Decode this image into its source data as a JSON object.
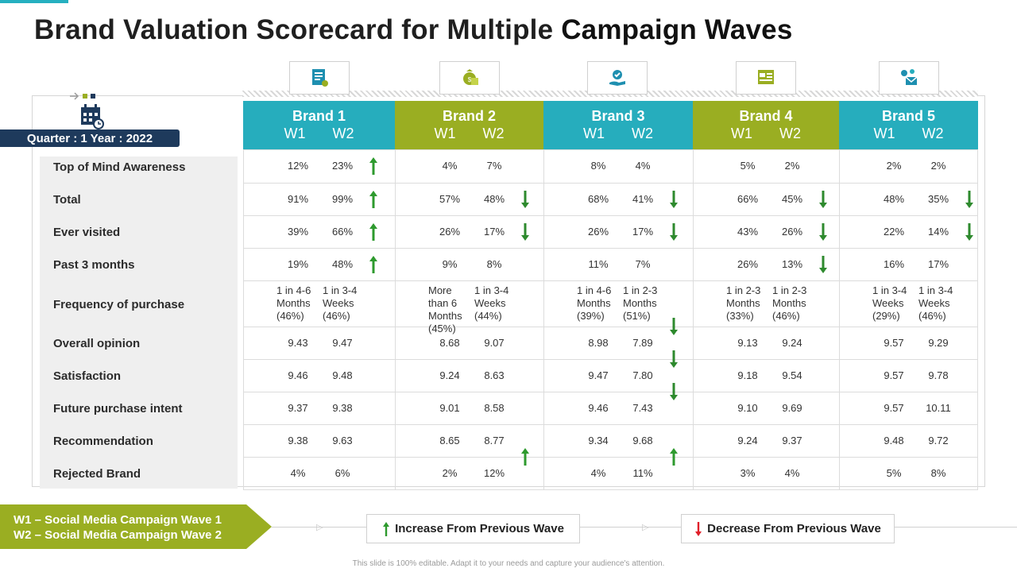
{
  "title": {
    "part1": "Brand Valuation Scorecard for Multiple ",
    "part2": "Campaign Waves"
  },
  "quarter_label": "Quarter : 1 Year : 2022",
  "row_labels": [
    "Top of Mind Awareness",
    "Total",
    "Ever visited",
    "Past 3 months",
    "Frequency of purchase",
    "Overall opinion",
    "Satisfaction",
    "Future purchase intent",
    "Recommendation",
    "Rejected Brand"
  ],
  "brands": [
    {
      "name": "Brand 1",
      "w1": "W1",
      "w2": "W2",
      "color": "#26adbd",
      "icon": "certificate-icon",
      "rows": [
        [
          "12%",
          "23%",
          "up"
        ],
        [
          "91%",
          "99%",
          "up"
        ],
        [
          "39%",
          "66%",
          "up"
        ],
        [
          "19%",
          "48%",
          "up"
        ],
        [
          "1 in 4-6 Months (46%)",
          "1 in 3-4 Weeks (46%)",
          ""
        ],
        [
          "9.43",
          "9.47",
          ""
        ],
        [
          "9.46",
          "9.48",
          ""
        ],
        [
          "9.37",
          "9.38",
          ""
        ],
        [
          "9.38",
          "9.63",
          ""
        ],
        [
          "4%",
          "6%",
          ""
        ]
      ]
    },
    {
      "name": "Brand 2",
      "w1": "W1",
      "w2": "W2",
      "color": "#9aae22",
      "icon": "money-bag-icon",
      "rows": [
        [
          "4%",
          "7%",
          ""
        ],
        [
          "57%",
          "48%",
          "down"
        ],
        [
          "26%",
          "17%",
          "down"
        ],
        [
          "9%",
          "8%",
          ""
        ],
        [
          "More than 6 Months (45%)",
          "1 in 3-4 Weeks (44%)",
          ""
        ],
        [
          "8.68",
          "9.07",
          ""
        ],
        [
          "9.24",
          "8.63",
          ""
        ],
        [
          "9.01",
          "8.58",
          ""
        ],
        [
          "8.65",
          "8.77",
          ""
        ],
        [
          "2%",
          "12%",
          "up-mid"
        ]
      ]
    },
    {
      "name": "Brand 3",
      "w1": "W1",
      "w2": "W2",
      "color": "#26adbd",
      "icon": "hand-check-icon",
      "rows": [
        [
          "8%",
          "4%",
          ""
        ],
        [
          "68%",
          "41%",
          "down"
        ],
        [
          "26%",
          "17%",
          "down"
        ],
        [
          "11%",
          "7%",
          ""
        ],
        [
          "1 in 4-6 Months (39%)",
          "1 in 2-3 Months (51%)",
          ""
        ],
        [
          "8.98",
          "7.89",
          "down-mid"
        ],
        [
          "9.47",
          "7.80",
          "down-mid"
        ],
        [
          "9.46",
          "7.43",
          "down-mid"
        ],
        [
          "9.34",
          "9.68",
          ""
        ],
        [
          "4%",
          "11%",
          "up-mid"
        ]
      ]
    },
    {
      "name": "Brand 4",
      "w1": "W1",
      "w2": "W2",
      "color": "#9aae22",
      "icon": "browser-window-icon",
      "rows": [
        [
          "5%",
          "2%",
          ""
        ],
        [
          "66%",
          "45%",
          "down"
        ],
        [
          "43%",
          "26%",
          "down"
        ],
        [
          "26%",
          "13%",
          "down"
        ],
        [
          "1 in 2-3 Months (33%)",
          "1 in 2-3 Months (46%)",
          ""
        ],
        [
          "9.13",
          "9.24",
          ""
        ],
        [
          "9.18",
          "9.54",
          ""
        ],
        [
          "9.10",
          "9.69",
          ""
        ],
        [
          "9.24",
          "9.37",
          ""
        ],
        [
          "3%",
          "4%",
          ""
        ]
      ]
    },
    {
      "name": "Brand 5",
      "w1": "W1",
      "w2": "W2",
      "color": "#26adbd",
      "icon": "email-network-icon",
      "rows": [
        [
          "2%",
          "2%",
          ""
        ],
        [
          "48%",
          "35%",
          "down"
        ],
        [
          "22%",
          "14%",
          "down"
        ],
        [
          "16%",
          "17%",
          ""
        ],
        [
          "1 in 3-4 Weeks (29%)",
          "1 in 3-4 Weeks (46%)",
          ""
        ],
        [
          "9.57",
          "9.29",
          ""
        ],
        [
          "9.57",
          "9.78",
          ""
        ],
        [
          "9.57",
          "10.11",
          ""
        ],
        [
          "9.48",
          "9.72",
          ""
        ],
        [
          "5%",
          "8%",
          ""
        ]
      ]
    }
  ],
  "legend": {
    "wave1": "W1 – Social Media Campaign Wave 1",
    "wave2": "W2 – Social Media Campaign Wave 2",
    "increase": "Increase From Previous Wave",
    "decrease": "Decrease From Previous Wave"
  },
  "colors": {
    "up": "#2e9a2e",
    "down": "#2e8a2e",
    "decrease_legend": "#e0202a",
    "navy": "#1e3a5c"
  },
  "footer": "This slide is 100% editable. Adapt it to your needs and capture your audience's attention."
}
